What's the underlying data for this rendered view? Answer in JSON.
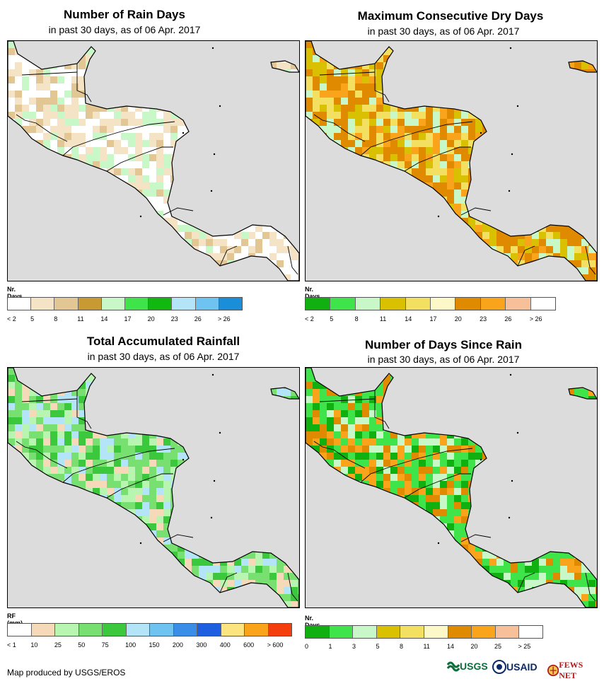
{
  "panels": [
    {
      "title": "Number of Rain Days",
      "subtitle": "in past 30 days, as of 06 Apr. 2017",
      "legend_title": "Nr. Days",
      "legend_colors": [
        "#ffffff",
        "#f5e3c6",
        "#e2c693",
        "#c99a34",
        "#c8f7c8",
        "#3ee44a",
        "#10b810",
        "#b4e4f8",
        "#6ec3f0",
        "#1a8ed8"
      ],
      "legend_ticks": [
        "< 2",
        "5",
        "8",
        "11",
        "14",
        "17",
        "20",
        "23",
        "26",
        "> 26"
      ],
      "palette": [
        "#ffffff",
        "#f5e3c6",
        "#e2c693",
        "#ffffff",
        "#f5e3c6",
        "#c8f7c8"
      ]
    },
    {
      "title": "Maximum Consecutive Dry Days",
      "subtitle": "in past 30 days, as of 06 Apr. 2017",
      "legend_title": "Nr. Days",
      "legend_colors": [
        "#10b010",
        "#3ee44a",
        "#c8f7c8",
        "#d9c000",
        "#f3e060",
        "#fdf8c8",
        "#e08a00",
        "#f9a41a",
        "#f8c098",
        "#ffffff"
      ],
      "legend_ticks": [
        "< 2",
        "5",
        "8",
        "11",
        "14",
        "17",
        "20",
        "23",
        "26",
        "> 26"
      ],
      "palette": [
        "#e08a00",
        "#f9a41a",
        "#d9c000",
        "#f3e060",
        "#e08a00",
        "#c8f7c8"
      ]
    },
    {
      "title": "Total Accumulated Rainfall",
      "subtitle": "in past 30 days, as of 06 Apr. 2017",
      "legend_title": "RF (mm)",
      "legend_colors": [
        "#ffffff",
        "#f5d9b8",
        "#b8f5b0",
        "#78e070",
        "#3cc83c",
        "#b4e4f8",
        "#6ec3f0",
        "#3b8ee8",
        "#1e5ee0",
        "#fce580",
        "#f9a41a",
        "#f53e0e"
      ],
      "legend_ticks": [
        "< 1",
        "10",
        "25",
        "50",
        "75",
        "100",
        "150",
        "200",
        "300",
        "400",
        "600",
        "> 600"
      ],
      "palette": [
        "#78e070",
        "#b8f5b0",
        "#78e070",
        "#3cc83c",
        "#f5d9b8",
        "#b4e4f8"
      ]
    },
    {
      "title": "Number of Days Since Rain",
      "subtitle": "in past 30 days, as of 06 Apr. 2017",
      "legend_title": "Nr. Days",
      "legend_colors": [
        "#10b010",
        "#3ee44a",
        "#c8f7c8",
        "#d9c000",
        "#f3e060",
        "#fdf8c8",
        "#e08a00",
        "#f9a41a",
        "#f8c098",
        "#ffffff"
      ],
      "legend_ticks": [
        "0",
        "1",
        "3",
        "5",
        "8",
        "11",
        "14",
        "20",
        "25",
        "> 25"
      ],
      "palette": [
        "#3ee44a",
        "#10b010",
        "#c8f7c8",
        "#3ee44a",
        "#f9a41a",
        "#e08a00"
      ]
    }
  ],
  "footer": {
    "credit": "Map produced by USGS/EROS",
    "logos": [
      "USGS",
      "USAID",
      "FEWS NET"
    ]
  }
}
